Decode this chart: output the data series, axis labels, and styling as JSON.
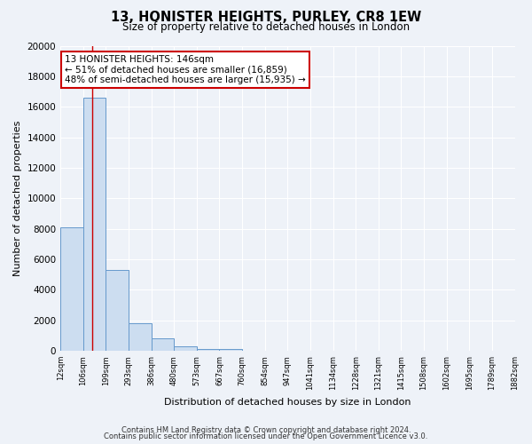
{
  "title": "13, HONISTER HEIGHTS, PURLEY, CR8 1EW",
  "subtitle": "Size of property relative to detached houses in London",
  "xlabel": "Distribution of detached houses by size in London",
  "ylabel": "Number of detached properties",
  "bin_labels": [
    "12sqm",
    "106sqm",
    "199sqm",
    "293sqm",
    "386sqm",
    "480sqm",
    "573sqm",
    "667sqm",
    "760sqm",
    "854sqm",
    "947sqm",
    "1041sqm",
    "1134sqm",
    "1228sqm",
    "1321sqm",
    "1415sqm",
    "1508sqm",
    "1602sqm",
    "1695sqm",
    "1789sqm",
    "1882sqm"
  ],
  "bar_heights": [
    8100,
    16600,
    5300,
    1800,
    800,
    300,
    150,
    100,
    0,
    0,
    0,
    0,
    0,
    0,
    0,
    0,
    0,
    0,
    0,
    0
  ],
  "ylim": [
    0,
    20000
  ],
  "yticks": [
    0,
    2000,
    4000,
    6000,
    8000,
    10000,
    12000,
    14000,
    16000,
    18000,
    20000
  ],
  "bar_color": "#ccddf0",
  "bar_edge_color": "#6699cc",
  "red_line_x": 1.4,
  "annotation_box_text": "13 HONISTER HEIGHTS: 146sqm\n← 51% of detached houses are smaller (16,859)\n48% of semi-detached houses are larger (15,935) →",
  "annotation_box_color": "#ffffff",
  "annotation_box_edge_color": "#cc0000",
  "footnote_line1": "Contains HM Land Registry data © Crown copyright and database right 2024.",
  "footnote_line2": "Contains public sector information licensed under the Open Government Licence v3.0.",
  "background_color": "#eef2f8",
  "plot_bg_color": "#eef2f8",
  "grid_color": "#ffffff"
}
